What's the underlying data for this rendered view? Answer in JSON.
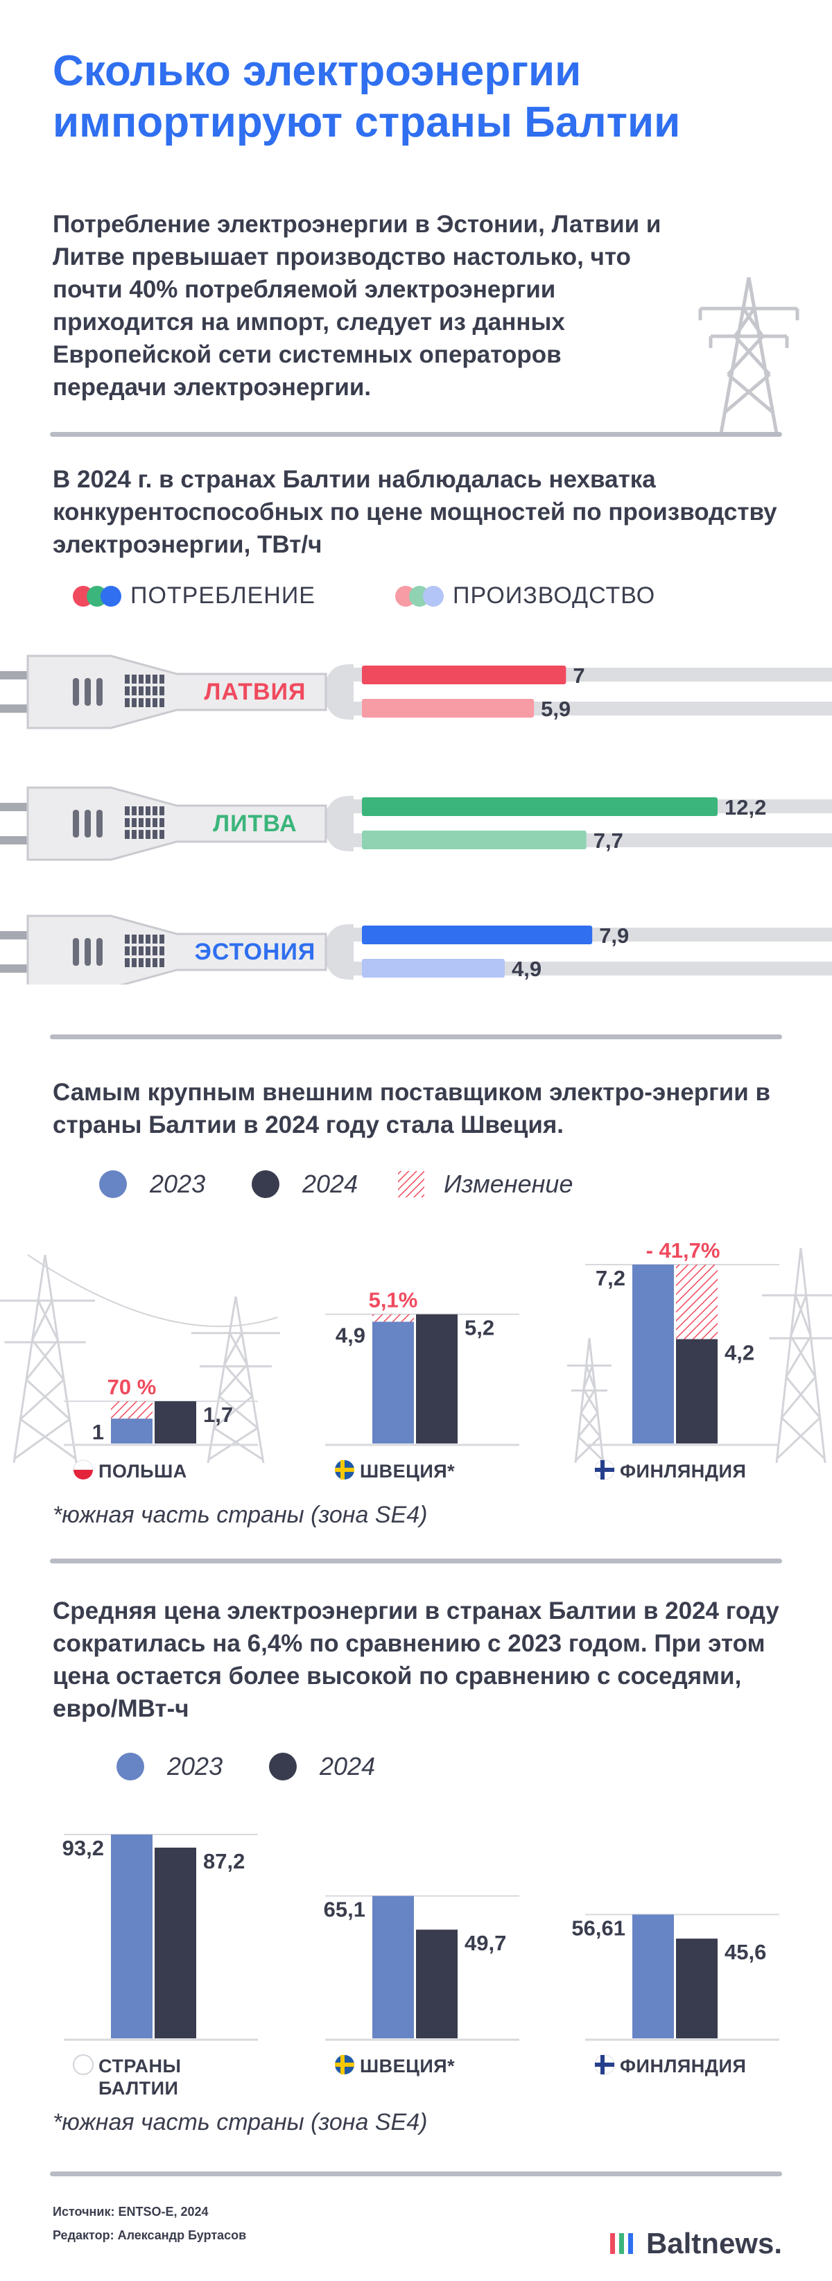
{
  "title": "Сколько электроэнергии импортируют страны Балтии",
  "intro": "Потребление электроэнергии в Эстонии, Латвии и Литве превышает производство настолько, что почти 40% потребляемой электроэнергии приходится на импорт, следует из данных Европейской сети системных операторов передачи электроэнергии.",
  "colors": {
    "title_blue": "#2f6ff0",
    "latvia_cons": "#f04a5e",
    "latvia_prod": "#f79ba4",
    "lithuania_cons": "#3bb57b",
    "lithuania_prod": "#8fd3b3",
    "estonia_cons": "#2f6ff0",
    "estonia_prod": "#b3c4f6",
    "bar_2023": "#6784c4",
    "bar_2024": "#393c4f",
    "change_red": "#f04a5e"
  },
  "section1": {
    "heading": "В 2024 г. в странах Балтии наблюдалась нехватка конкурентоспособных по цене мощностей по производству электроэнергии, ТВт/ч",
    "legend": {
      "consumption": "ПОТРЕБЛЕНИЕ",
      "production": "ПРОИЗВОДСТВО"
    }
  },
  "section2": {
    "heading": "Самым крупным внешним поставщиком электро-энергии в страны Балтии в 2024 году стала Швеция.",
    "legend": {
      "y2023": "2023",
      "y2024": "2024",
      "change": "Изменение"
    },
    "note": "*южная часть страны (зона SE4)"
  },
  "section3": {
    "heading": "Средняя цена электроэнергии в странах Балтии в 2024 году сократилась на 6,4% по сравнению с 2023 годом. При этом цена остается более высокой по сравнению с соседями, евро/МВт-ч",
    "legend": {
      "y2023": "2023",
      "y2024": "2024"
    },
    "note": "*южная часть страны (зона SE4)"
  },
  "chart_data": [
    {
      "type": "bar",
      "title": "В 2024 г. в странах Балтии наблюдалась нехватка конкурентоспособных по цене мощностей по производству электроэнергии, ТВт/ч",
      "categories": [
        "ЛАТВИЯ",
        "ЛИТВА",
        "ЭСТОНИЯ"
      ],
      "series": [
        {
          "name": "ПОТРЕБЛЕНИЕ",
          "values": [
            7,
            12.2,
            7.9
          ],
          "labels": [
            "7",
            "12,2",
            "7,9"
          ]
        },
        {
          "name": "ПРОИЗВОДСТВО",
          "values": [
            5.9,
            7.7,
            4.9
          ],
          "labels": [
            "5,9",
            "7,7",
            "4,9"
          ]
        }
      ],
      "orientation": "horizontal",
      "xlim": [
        0,
        12.2
      ]
    },
    {
      "type": "bar",
      "title": "Самым крупным внешним поставщиком электро-энергии в страны Балтии в 2024 году стала Швеция.",
      "categories": [
        "ПОЛЬША",
        "ШВЕЦИЯ*",
        "ФИНЛЯНДИЯ"
      ],
      "series": [
        {
          "name": "2023",
          "values": [
            1,
            4.9,
            7.2
          ],
          "labels": [
            "1",
            "4,9",
            "7,2"
          ]
        },
        {
          "name": "2024",
          "values": [
            1.7,
            5.2,
            4.2
          ],
          "labels": [
            "1,7",
            "5,2",
            "4,2"
          ]
        }
      ],
      "change_labels": [
        "70 %",
        "5,1%",
        "- 41,7%"
      ],
      "ylim": [
        0,
        7.2
      ]
    },
    {
      "type": "bar",
      "title": "Средняя цена электроэнергии в странах Балтии в 2024 году сократилась на 6,4% по сравнению с 2023 годом. При этом цена остается более высокой по сравнению с соседями, евро/МВт-ч",
      "categories": [
        "СТРАНЫ БАЛТИИ",
        "ШВЕЦИЯ*",
        "ФИНЛЯНДИЯ"
      ],
      "series": [
        {
          "name": "2023",
          "values": [
            93.2,
            65.1,
            56.61
          ],
          "labels": [
            "93,2",
            "65,1",
            "56,61"
          ]
        },
        {
          "name": "2024",
          "values": [
            87.2,
            49.7,
            45.6
          ],
          "labels": [
            "87,2",
            "49,7",
            "45,6"
          ]
        }
      ],
      "ylim": [
        0,
        93.2
      ]
    }
  ],
  "footer": {
    "source": "Источник: ENTSO-E, 2024",
    "editor": "Редактор: Александр Буртасов",
    "logo": "Baltnews."
  }
}
